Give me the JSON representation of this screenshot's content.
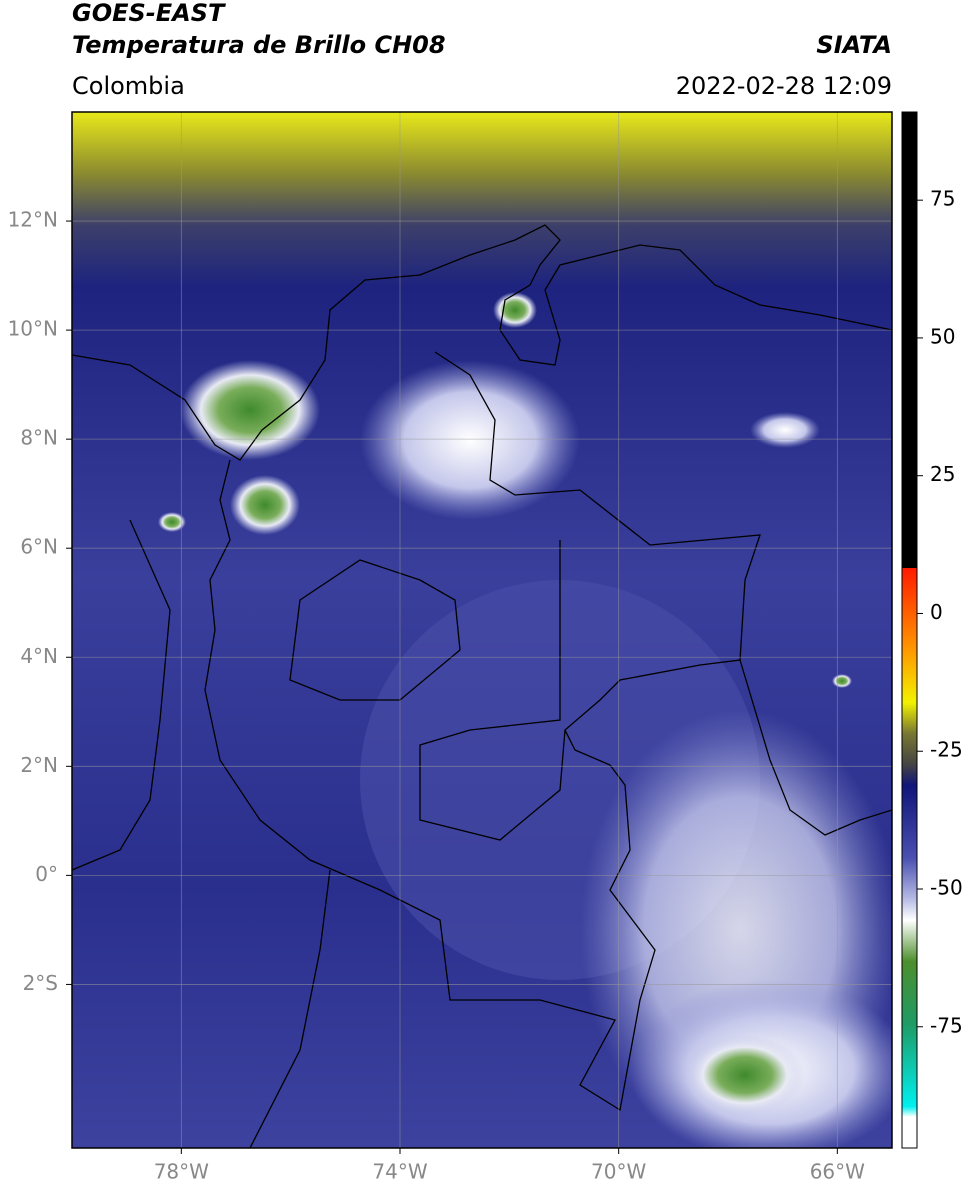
{
  "header": {
    "title": "GOES-EAST",
    "subtitle": "Temperatura de Brillo CH08",
    "region": "Colombia",
    "source": "SIATA",
    "datetime": "2022-02-28 12:09"
  },
  "map": {
    "xlim": [
      -80,
      -65
    ],
    "ylim": [
      -5,
      14
    ],
    "xticks": [
      {
        "value": -78,
        "label": "78°W"
      },
      {
        "value": -74,
        "label": "74°W"
      },
      {
        "value": -70,
        "label": "70°W"
      },
      {
        "value": -66,
        "label": "66°W"
      }
    ],
    "yticks": [
      {
        "value": 12,
        "label": "12°N"
      },
      {
        "value": 10,
        "label": "10°N"
      },
      {
        "value": 8,
        "label": "8°N"
      },
      {
        "value": 6,
        "label": "6°N"
      },
      {
        "value": 4,
        "label": "4°N"
      },
      {
        "value": 2,
        "label": "2°N"
      },
      {
        "value": 0,
        "label": "0°"
      },
      {
        "value": -2,
        "label": "2°S"
      }
    ],
    "grid": true
  },
  "colorbar": {
    "lim": [
      -97,
      91
    ],
    "ticks": [
      75,
      50,
      25,
      0,
      -25,
      -50,
      -75
    ]
  }
}
